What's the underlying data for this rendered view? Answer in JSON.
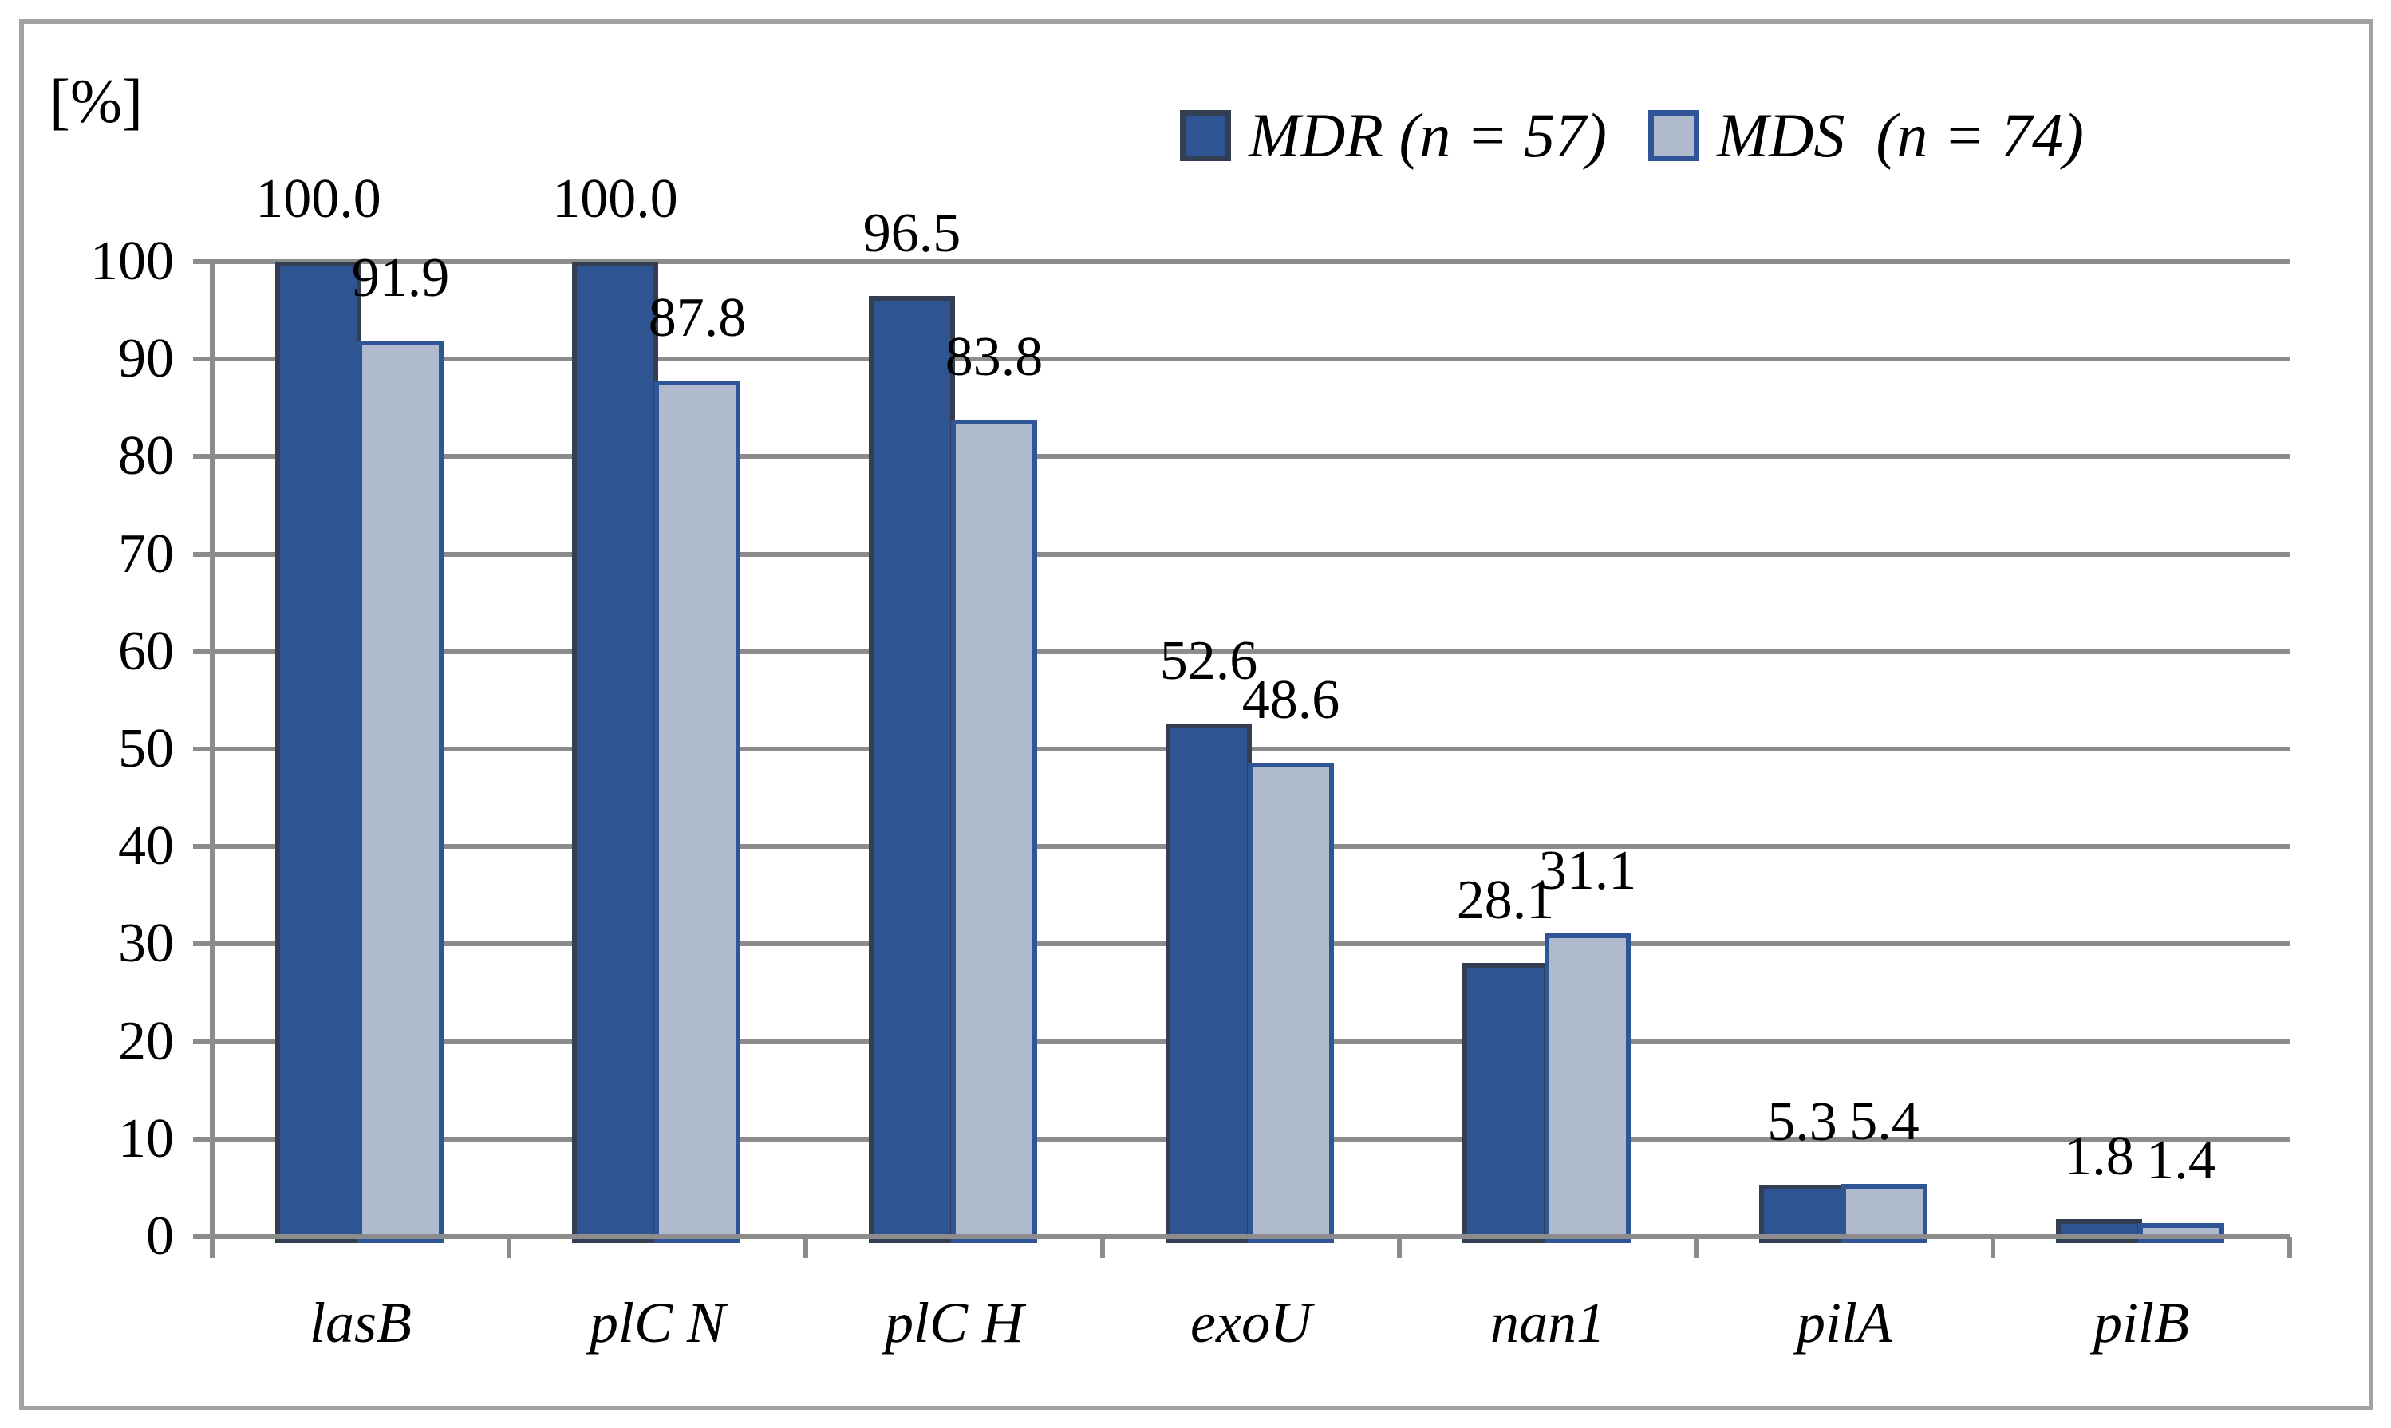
{
  "chart_data": {
    "type": "bar",
    "unit_label": "[%]",
    "categories": [
      "lasB",
      "plC N",
      "plC H",
      "exoU",
      "nan1",
      "pilA",
      "pilB"
    ],
    "series": [
      {
        "name": "MDR (n = 57)",
        "values": [
          100.0,
          100.0,
          96.5,
          52.6,
          28.1,
          5.3,
          1.8
        ],
        "fill": "#2E5492",
        "border": "#333E53"
      },
      {
        "name": "MDS  (n = 74)",
        "values": [
          91.9,
          87.8,
          83.8,
          48.6,
          31.1,
          5.4,
          1.4
        ],
        "fill": "#B0BACD",
        "border": "#2F5597"
      }
    ],
    "value_labels": [
      [
        "100.0",
        "100.0",
        "96.5",
        "52.6",
        "28.1",
        "5.3",
        "1.8"
      ],
      [
        "91.9",
        "87.8",
        "83.8",
        "48.6",
        "31.1",
        "5.4",
        "1.4"
      ]
    ],
    "ylim": [
      0,
      100
    ],
    "yticks": [
      "0",
      "10",
      "20",
      "30",
      "40",
      "50",
      "60",
      "70",
      "80",
      "90",
      "100"
    ],
    "grid": true,
    "legend_position": "top-right",
    "colors": {
      "gridline": "#8C8C8C",
      "axis": "#8C8C8C",
      "frame_border": "#A3A3A3",
      "text": "#000000"
    }
  },
  "legend": {
    "items": [
      {
        "label": "MDR (n = 57)"
      },
      {
        "label": "MDS  (n = 74)"
      }
    ]
  },
  "y_axis": {
    "unit_label": "[%]"
  }
}
